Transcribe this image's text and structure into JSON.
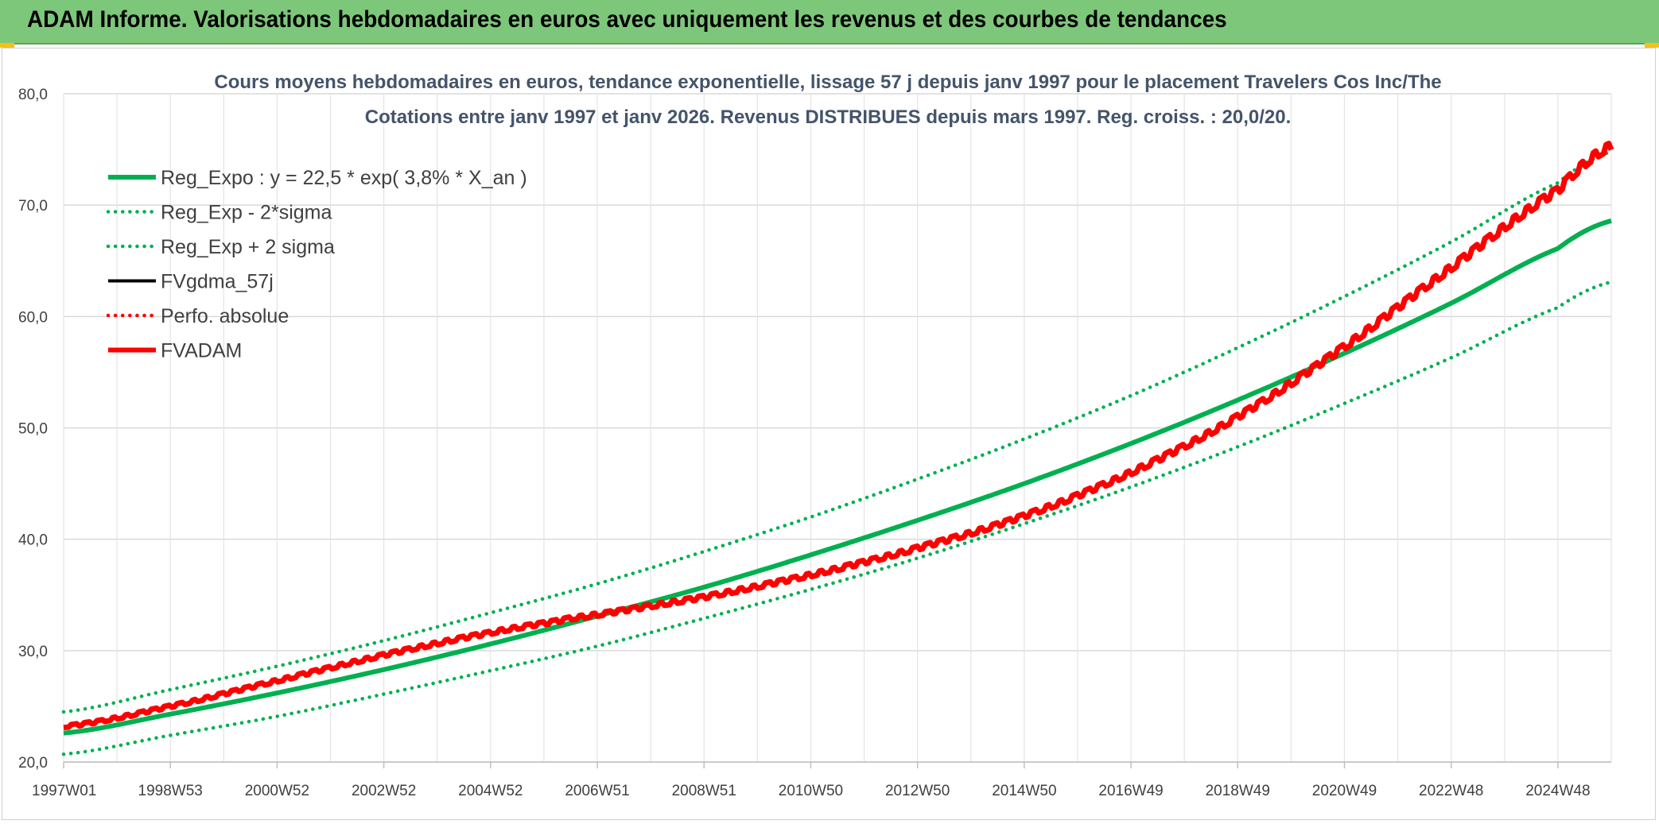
{
  "header": {
    "title": "ADAM Informe. Valorisations hebdomadaires en euros avec uniquement les revenus et des courbes de tendances"
  },
  "chart_data": {
    "type": "line",
    "title_line1": "Cours moyens hebdomadaires en euros, tendance exponentielle, lissage 57 j depuis janv 1997 pour le placement Travelers Cos Inc/The",
    "title_line2": "Cotations entre janv 1997 et janv 2026. Revenus DISTRIBUES depuis mars 1997. Reg. croiss. : 20,0/20.",
    "xlabel": "",
    "ylabel": "",
    "ylim": [
      20,
      80
    ],
    "xlim": [
      1997.0,
      2026.0
    ],
    "y_ticks": [
      "20,0",
      "30,0",
      "40,0",
      "50,0",
      "60,0",
      "70,0",
      "80,0"
    ],
    "x_tick_labels": [
      "1997W01",
      "1998W53",
      "2000W52",
      "2002W52",
      "2004W52",
      "2006W51",
      "2008W51",
      "2010W50",
      "2012W50",
      "2014W50",
      "2016W49",
      "2018W49",
      "2020W49",
      "2022W48",
      "2024W48"
    ],
    "grid": true,
    "legend_position": "top-left",
    "series": [
      {
        "name": "Reg_Expo : y = 22,5 * exp( 3,8% *  X_an )",
        "color": "#00b050",
        "style": "solid",
        "width": "thick",
        "x": [
          1997,
          1999,
          2001,
          2003,
          2005,
          2007,
          2009,
          2011,
          2013,
          2015,
          2017,
          2019,
          2021,
          2023,
          2025,
          2026
        ],
        "values": [
          22.6,
          24.3,
          26.2,
          28.3,
          30.6,
          33.1,
          35.7,
          38.6,
          41.7,
          45.0,
          48.6,
          52.5,
          56.7,
          61.2,
          66.1,
          68.6
        ]
      },
      {
        "name": "Reg_Exp - 2*sigma",
        "color": "#00b050",
        "style": "dotted",
        "width": "medium",
        "x": [
          1997,
          1999,
          2001,
          2003,
          2005,
          2007,
          2009,
          2011,
          2013,
          2015,
          2017,
          2019,
          2021,
          2023,
          2025,
          2026
        ],
        "values": [
          20.7,
          22.4,
          24.1,
          26.1,
          28.2,
          30.4,
          32.9,
          35.5,
          38.3,
          41.4,
          44.7,
          48.3,
          52.2,
          56.3,
          60.8,
          63.1
        ]
      },
      {
        "name": "Reg_Exp + 2 sigma",
        "color": "#00b050",
        "style": "dotted",
        "width": "medium",
        "x": [
          1997,
          1999,
          2001,
          2003,
          2005,
          2007,
          2009,
          2011,
          2013,
          2015,
          2017,
          2019,
          2021,
          2023,
          2025,
          2026
        ],
        "values": [
          24.5,
          26.5,
          28.6,
          30.9,
          33.4,
          36.0,
          38.9,
          42.0,
          45.4,
          49.0,
          52.9,
          57.2,
          61.8,
          66.7,
          72.0,
          74.8
        ]
      },
      {
        "name": "FVgdma_57j",
        "color": "#000000",
        "style": "solid",
        "width": "medium",
        "x": [],
        "values": []
      },
      {
        "name": "Perfo. absolue",
        "color": "#ff0000",
        "style": "dotted",
        "width": "medium",
        "x": [],
        "values": []
      },
      {
        "name": "FVADAM",
        "color": "#ff0000",
        "style": "solid-stepped",
        "width": "thick",
        "x": [
          1997,
          1999,
          2001,
          2003,
          2005,
          2006.5,
          2009,
          2011,
          2013,
          2015,
          2017,
          2019,
          2021,
          2023,
          2025,
          2026
        ],
        "values": [
          23.2,
          25.0,
          27.3,
          29.6,
          31.6,
          32.9,
          34.8,
          36.8,
          39.2,
          42.1,
          46.0,
          51.0,
          57.3,
          64.4,
          71.3,
          75.3
        ]
      }
    ]
  },
  "colors": {
    "header_bg": "#7dc77a",
    "accent_yellow": "#f2c21b",
    "title_text": "#44546a",
    "grid": "#d9d9d9"
  }
}
